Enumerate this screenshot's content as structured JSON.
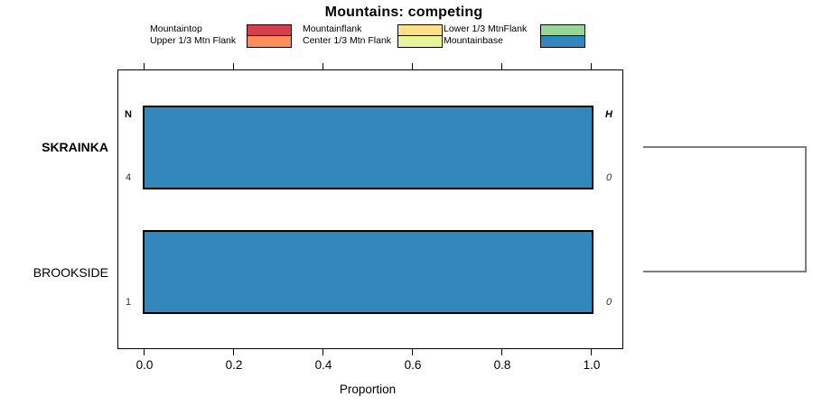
{
  "title": "Mountains: competing",
  "legend": {
    "columns": [
      {
        "rows": [
          {
            "label": "Mountaintop",
            "color": "#D5404F"
          },
          {
            "label": "Upper 1/3 Mtn Flank",
            "color": "#FC8D59"
          }
        ]
      },
      {
        "rows": [
          {
            "label": "Mountainflank",
            "color": "#FEE08B"
          },
          {
            "label": "Center 1/3 Mtn Flank",
            "color": "#E6F598"
          }
        ]
      },
      {
        "rows": [
          {
            "label": "Lower 1/3 MtnFlank",
            "color": "#99D594"
          },
          {
            "label": "Mountainbase",
            "color": "#3288BD"
          }
        ]
      }
    ]
  },
  "plot": {
    "left_header": "N",
    "right_header": "H",
    "rows": [
      {
        "label": "SKRAINKA",
        "n": "4",
        "h": "0"
      },
      {
        "label": "BROOKSIDE",
        "n": "1",
        "h": "0"
      }
    ]
  },
  "x_axis": {
    "tick_labels": [
      "0.0",
      "0.2",
      "0.4",
      "0.6",
      "0.8",
      "1.0"
    ],
    "label": "Proportion"
  },
  "colors": {
    "bar_fill": "#3288BD",
    "bracket": "#7d7d7d"
  },
  "chart_data": {
    "type": "bar",
    "orientation": "horizontal",
    "title": "Mountains: competing",
    "xlabel": "Proportion",
    "xlim": [
      0.0,
      1.0
    ],
    "xticks": [
      0.0,
      0.2,
      0.4,
      0.6,
      0.8,
      1.0
    ],
    "grid": false,
    "legend_position": "top",
    "categories": [
      "SKRAINKA",
      "BROOKSIDE"
    ],
    "legend_entries": [
      "Mountaintop",
      "Upper 1/3 Mtn Flank",
      "Mountainflank",
      "Center 1/3 Mtn Flank",
      "Lower 1/3 MtnFlank",
      "Mountainbase"
    ],
    "legend_colors": [
      "#D5404F",
      "#FC8D59",
      "#FEE08B",
      "#E6F598",
      "#99D594",
      "#3288BD"
    ],
    "series": [
      {
        "name": "Mountainbase",
        "color": "#3288BD",
        "values": [
          1.0,
          1.0
        ]
      }
    ],
    "counts_N": [
      4,
      1
    ],
    "counts_H": [
      0,
      0
    ],
    "right_dendrogram": {
      "joined_rows": [
        "SKRAINKA",
        "BROOKSIDE"
      ]
    }
  }
}
